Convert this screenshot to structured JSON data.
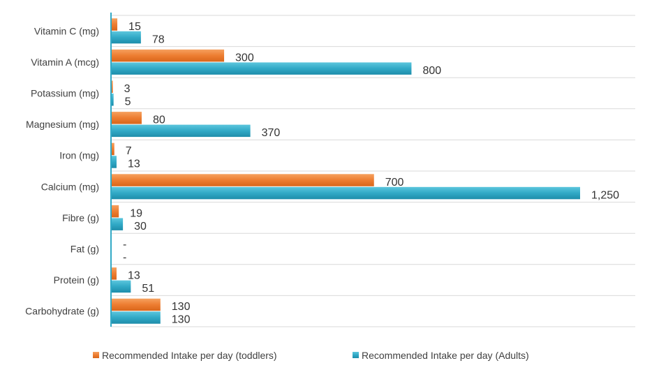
{
  "chart_data": {
    "type": "bar",
    "orientation": "horizontal",
    "categories": [
      "Vitamin C (mg)",
      "Vitamin A (mcg)",
      "Potassium (mg)",
      "Magnesium (mg)",
      "Iron (mg)",
      "Calcium (mg)",
      "Fibre (g)",
      "Fat (g)",
      "Protein (g)",
      "Carbohydrate (g)"
    ],
    "series": [
      {
        "name": "Recommended Intake per day (toddlers)",
        "color": "#ED7D31",
        "values": [
          15,
          300,
          3,
          80,
          7,
          700,
          19,
          null,
          13,
          130
        ],
        "labels": [
          "15",
          "300",
          "3",
          "80",
          "7",
          "700",
          "19",
          "-",
          "13",
          "130"
        ]
      },
      {
        "name": "Recommended Intake per day (Adults)",
        "color": "#31A9C6",
        "values": [
          78,
          800,
          5,
          370,
          13,
          1250,
          30,
          null,
          51,
          130
        ],
        "labels": [
          "78",
          "800",
          "5",
          "370",
          "13",
          "1,250",
          "30",
          "-",
          "51",
          "130"
        ]
      }
    ],
    "xlim": [
      0,
      1250
    ],
    "grid": true,
    "legend_position": "bottom",
    "title": "",
    "xlabel": "",
    "ylabel": ""
  }
}
